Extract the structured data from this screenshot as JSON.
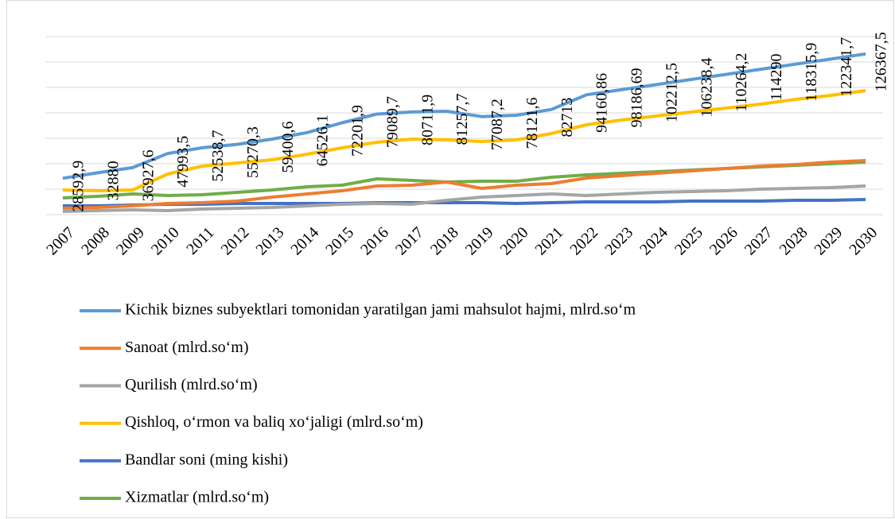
{
  "chart_data": {
    "type": "line",
    "categories": [
      "2007",
      "2008",
      "2009",
      "2010",
      "2011",
      "2012",
      "2013",
      "2014",
      "2015",
      "2016",
      "2017",
      "2018",
      "2019",
      "2020",
      "2021",
      "2022",
      "2023",
      "2024",
      "2025",
      "2026",
      "2027",
      "2028",
      "2029",
      "2030"
    ],
    "ylim": [
      0,
      140000
    ],
    "yticks": [
      0,
      20000,
      40000,
      60000,
      80000,
      100000,
      120000,
      140000
    ],
    "grid": true,
    "legend": "bottom",
    "series": [
      {
        "name": "Kichik biznes subyektlari tomonidan yaratilgan jami mahsulot hajmi, mlrd.so‘m",
        "color": "#5b9bd5",
        "values": [
          28592.9,
          32880,
          36927.6,
          47993.5,
          52538.7,
          55270.3,
          59400.6,
          64526.1,
          72201.9,
          79089.7,
          80711.9,
          81257.7,
          77087.2,
          78121.6,
          82713,
          94160.86,
          98186.69,
          102212.5,
          106238.4,
          110264.2,
          114290,
          118315.9,
          122341.7,
          126367.5
        ],
        "value_labels": [
          "28592,9",
          "32880",
          "36927,6",
          "47993,5",
          "52538,7",
          "55270,3",
          "59400,6",
          "64526,1",
          "72201,9",
          "79089,7",
          "80711,9",
          "81257,7",
          "77087,2",
          "78121,6",
          "82713",
          "94160,86",
          "98186,69",
          "102212,5",
          "106238,4",
          "110264,2",
          "114290",
          "118315,9",
          "122341,7",
          "126367,5"
        ]
      },
      {
        "name": "Sanoat (mlrd.so‘m)",
        "color": "#ed7d31",
        "values": [
          5000,
          5600,
          6900,
          8750,
          9400,
          10600,
          13750,
          16250,
          18750,
          22500,
          23100,
          25600,
          20600,
          23100,
          24400,
          28750,
          30600,
          32500,
          34400,
          36250,
          38100,
          39400,
          41250,
          42500
        ]
      },
      {
        "name": "Qurilish (mlrd.so‘m)",
        "color": "#a5a5a5",
        "values": [
          2500,
          3100,
          3750,
          3100,
          4400,
          5000,
          5600,
          6900,
          8100,
          8750,
          8100,
          11250,
          13750,
          15000,
          16250,
          15000,
          16250,
          17500,
          18100,
          18750,
          20000,
          20600,
          21250,
          22500
        ]
      },
      {
        "name": "Qishloq, o‘rmon va baliq xo‘jaligi (mlrd.so‘m)",
        "color": "#ffc000",
        "values": [
          19400,
          18750,
          19400,
          31900,
          38100,
          40600,
          43100,
          47500,
          52500,
          56900,
          59400,
          58750,
          57500,
          58750,
          63750,
          70600,
          74400,
          77500,
          80600,
          83750,
          86900,
          90600,
          93750,
          97500
        ]
      },
      {
        "name": "Bandlar soni (ming kishi)",
        "color": "#4472c4",
        "values": [
          6900,
          6900,
          7500,
          8100,
          8100,
          8750,
          8750,
          8750,
          8750,
          9400,
          9400,
          9400,
          9400,
          8750,
          9400,
          10000,
          10000,
          10000,
          10600,
          10600,
          10600,
          11250,
          11250,
          11900
        ]
      },
      {
        "name": "Xizmatlar (mlrd.so‘m)",
        "color": "#70ad47",
        "values": [
          13100,
          14400,
          16250,
          15000,
          15600,
          17500,
          19400,
          21900,
          23100,
          28100,
          26900,
          25600,
          26250,
          26250,
          29400,
          31250,
          32500,
          33750,
          35000,
          36250,
          37500,
          38750,
          40000,
          41250
        ]
      }
    ]
  }
}
